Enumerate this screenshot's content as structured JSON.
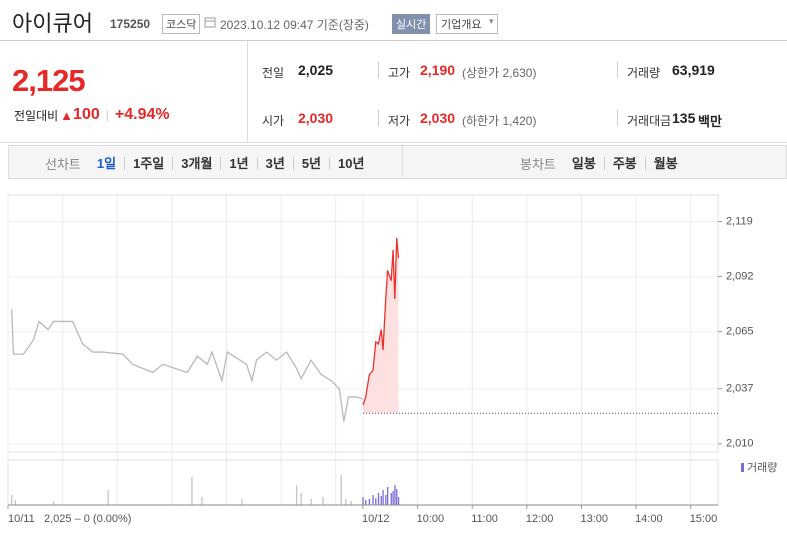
{
  "header": {
    "name": "아이큐어",
    "code": "175250",
    "market": "코스닥",
    "datetime": "2023.10.12 09:47 기준(장중)",
    "realtime": "실시간",
    "company": "기업개요"
  },
  "price": {
    "current": "2,125",
    "change_label": "전일대비",
    "change": "100",
    "change_pct": "+4.94%"
  },
  "summary": {
    "rows": [
      [
        {
          "label": "전일",
          "value": "2,025"
        },
        {
          "label": "고가",
          "value": "2,190",
          "note": "(상한가 2,630)"
        },
        {
          "label": "거래량",
          "value": "63,919"
        }
      ],
      [
        {
          "label": "시가",
          "value": "2,030"
        },
        {
          "label": "저가",
          "value": "2,030",
          "note": "(하한가 1,420)"
        },
        {
          "label": "거래대금",
          "value": "135",
          "unit": "백만"
        }
      ]
    ]
  },
  "tabs": {
    "line_label": "선차트",
    "line": [
      "1일",
      "1주일",
      "3개월",
      "1년",
      "3년",
      "5년",
      "10년"
    ],
    "candle_label": "봉차트",
    "candle": [
      "일봉",
      "주봉",
      "월봉"
    ]
  },
  "chart_data": [
    {
      "type": "line",
      "xlim": [
        -390,
        390
      ],
      "ylim": [
        2006,
        2132
      ],
      "yticks": [
        {
          "value": 2119,
          "label": "2,119"
        },
        {
          "value": 2092,
          "label": "2,092"
        },
        {
          "value": 2065,
          "label": "2,065"
        },
        {
          "value": 2037,
          "label": "2,037"
        },
        {
          "value": 2010,
          "label": "2,010"
        }
      ],
      "xticks": [
        {
          "value": -390,
          "label": "10/11"
        },
        {
          "value": 0,
          "label": "10/12"
        },
        {
          "value": 60,
          "label": "10:00"
        },
        {
          "value": 120,
          "label": "11:00"
        },
        {
          "value": 180,
          "label": "12:00"
        },
        {
          "value": 240,
          "label": "13:00"
        },
        {
          "value": 300,
          "label": "14:00"
        },
        {
          "value": 360,
          "label": "15:00"
        }
      ],
      "xgrid": [
        -330,
        -270,
        -210,
        -150,
        -90,
        -30
      ],
      "note": "2,025 – 0 (0.00%)",
      "baseline": 2025,
      "series": [
        {
          "color": "#b9b9b9",
          "x": [
            -386,
            -384,
            -373,
            -362,
            -356,
            -346,
            -340,
            -319,
            -313,
            -308,
            -297,
            -286,
            -264,
            -253,
            -231,
            -220,
            -193,
            -182,
            -171,
            -166,
            -155,
            -149,
            -128,
            -122,
            -117,
            -106,
            -95,
            -84,
            -73,
            -68,
            -57,
            -46,
            -35,
            -26,
            -21,
            -16,
            -8,
            0
          ],
          "values": [
            2076,
            2054,
            2054,
            2061,
            2070,
            2066,
            2070,
            2070,
            2064,
            2059,
            2055,
            2055,
            2054,
            2049,
            2045,
            2049,
            2045,
            2053,
            2049,
            2055,
            2041,
            2055,
            2049,
            2041,
            2051,
            2055,
            2051,
            2055,
            2047,
            2042,
            2051,
            2044,
            2041,
            2037,
            2021,
            2033,
            2033,
            2032
          ]
        },
        {
          "color": "#e8302d",
          "fill": "#fde1e1",
          "x": [
            0,
            3,
            7,
            11,
            14,
            17,
            20,
            22,
            25,
            27,
            31,
            33,
            35,
            37,
            39
          ],
          "values": [
            2029,
            2033,
            2044,
            2046,
            2060,
            2059,
            2066,
            2056,
            2081,
            2095,
            2090,
            2105,
            2081,
            2111,
            2101
          ]
        }
      ]
    },
    {
      "type": "bar",
      "xlim": [
        -390,
        390
      ],
      "ylim": [
        0,
        45
      ],
      "legend": "top-right",
      "series": [
        {
          "color": "#c4c4c4",
          "x": [
            -386,
            -382,
            -340,
            -280,
            -188,
            -177,
            -133,
            -73,
            -68,
            -57,
            -44,
            -24,
            -19,
            -13
          ],
          "values": [
            10,
            5,
            4,
            15,
            28,
            8,
            6,
            20,
            12,
            6,
            8,
            30,
            6,
            4
          ]
        },
        {
          "name": "거래량",
          "color": "#7d6ad6",
          "x": [
            0,
            3,
            7,
            11,
            14,
            17,
            20,
            22,
            25,
            27,
            31,
            33,
            35,
            37,
            39
          ],
          "values": [
            8,
            5,
            6,
            10,
            7,
            12,
            9,
            15,
            10,
            18,
            12,
            14,
            20,
            16,
            8
          ]
        }
      ]
    }
  ]
}
